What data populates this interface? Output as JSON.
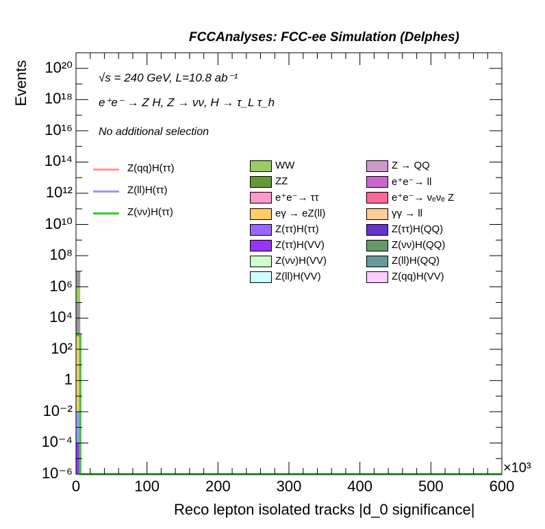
{
  "header_title": "FCCAnalyses: FCC-ee Simulation (Delphes)",
  "annotations": {
    "line1": "√s = 240 GeV, L=10.8 ab⁻¹",
    "line2": "e⁺e⁻ → Z H, Z → νν, H → τ_L τ_h",
    "line3": "No additional selection"
  },
  "chart_data": {
    "type": "histogram",
    "title": "",
    "xlabel": "Reco lepton isolated tracks |d_0 significance|",
    "ylabel": "Events",
    "x_multiplier": "×10³",
    "xlim": [
      0,
      600
    ],
    "ylim": [
      1e-06,
      1e+21
    ],
    "y_scale": "log",
    "x_ticks": [
      "0",
      "100",
      "200",
      "300",
      "400",
      "500",
      "600"
    ],
    "y_ticks": [
      "10⁻⁶",
      "10⁻⁴",
      "10⁻²",
      "1",
      "10²",
      "10⁴",
      "10⁶",
      "10⁸",
      "10¹⁰",
      "10¹²",
      "10¹⁴",
      "10¹⁶",
      "10¹⁸",
      "10²⁰"
    ],
    "stacked_bin": {
      "x_range": [
        0,
        6
      ],
      "components": [
        {
          "name": "Z(ττ)H(VV)",
          "bottom": 1e-06,
          "top": 0.0001
        },
        {
          "name": "Z(ll)H(ττ)",
          "bottom": 0.0001,
          "top": 0.01
        },
        {
          "name": "eγ → eZ(ll)",
          "bottom": 0.01,
          "top": 1000.0
        },
        {
          "name": "e⁺e⁻ → ττ",
          "bottom": 1000.0,
          "top": 100000.0
        },
        {
          "name": "WW",
          "bottom": 100000.0,
          "top": 1000000.0
        },
        {
          "name": "e⁺e⁻ → ll",
          "bottom": 1000000.0,
          "top": 10000000.0
        }
      ]
    },
    "signal_lines": [
      {
        "name": "Z(qq)H(ττ)",
        "color": "#ff9999",
        "x_edge": 6,
        "y_max": 800
      },
      {
        "name": "Z(ll)H(ττ)",
        "color": "#9999ff",
        "x_edge": 6,
        "y_max": 800
      },
      {
        "name": "Z(νν)H(ττ)",
        "color": "#33cc33",
        "x_edge": 6,
        "y_max": 800
      }
    ],
    "background_series": [
      {
        "name": "WW",
        "color": "#99cc66"
      },
      {
        "name": "Z → QQ",
        "color": "#cc99cc"
      },
      {
        "name": "ZZ",
        "color": "#669933"
      },
      {
        "name": "e⁺e⁻→ ll",
        "color": "#cc66cc"
      },
      {
        "name": "e⁺e⁻→ ττ",
        "color": "#ff99cc"
      },
      {
        "name": "e⁺e⁻→ νₑνₑ Z",
        "color": "#ff6699"
      },
      {
        "name": "eγ → eZ(ll)",
        "color": "#ffcc66"
      },
      {
        "name": "γγ → ll",
        "color": "#ffcc99"
      },
      {
        "name": "Z(ττ)H(ττ)",
        "color": "#9966ff"
      },
      {
        "name": "Z(ττ)H(QQ)",
        "color": "#6633cc"
      },
      {
        "name": "Z(ττ)H(VV)",
        "color": "#9933ff"
      },
      {
        "name": "Z(νν)H(QQ)",
        "color": "#669966"
      },
      {
        "name": "Z(νν)H(VV)",
        "color": "#ccffcc"
      },
      {
        "name": "Z(ll)H(QQ)",
        "color": "#669999"
      },
      {
        "name": "Z(ll)H(VV)",
        "color": "#ccffff"
      },
      {
        "name": "Z(qq)H(VV)",
        "color": "#ffccff"
      }
    ]
  }
}
